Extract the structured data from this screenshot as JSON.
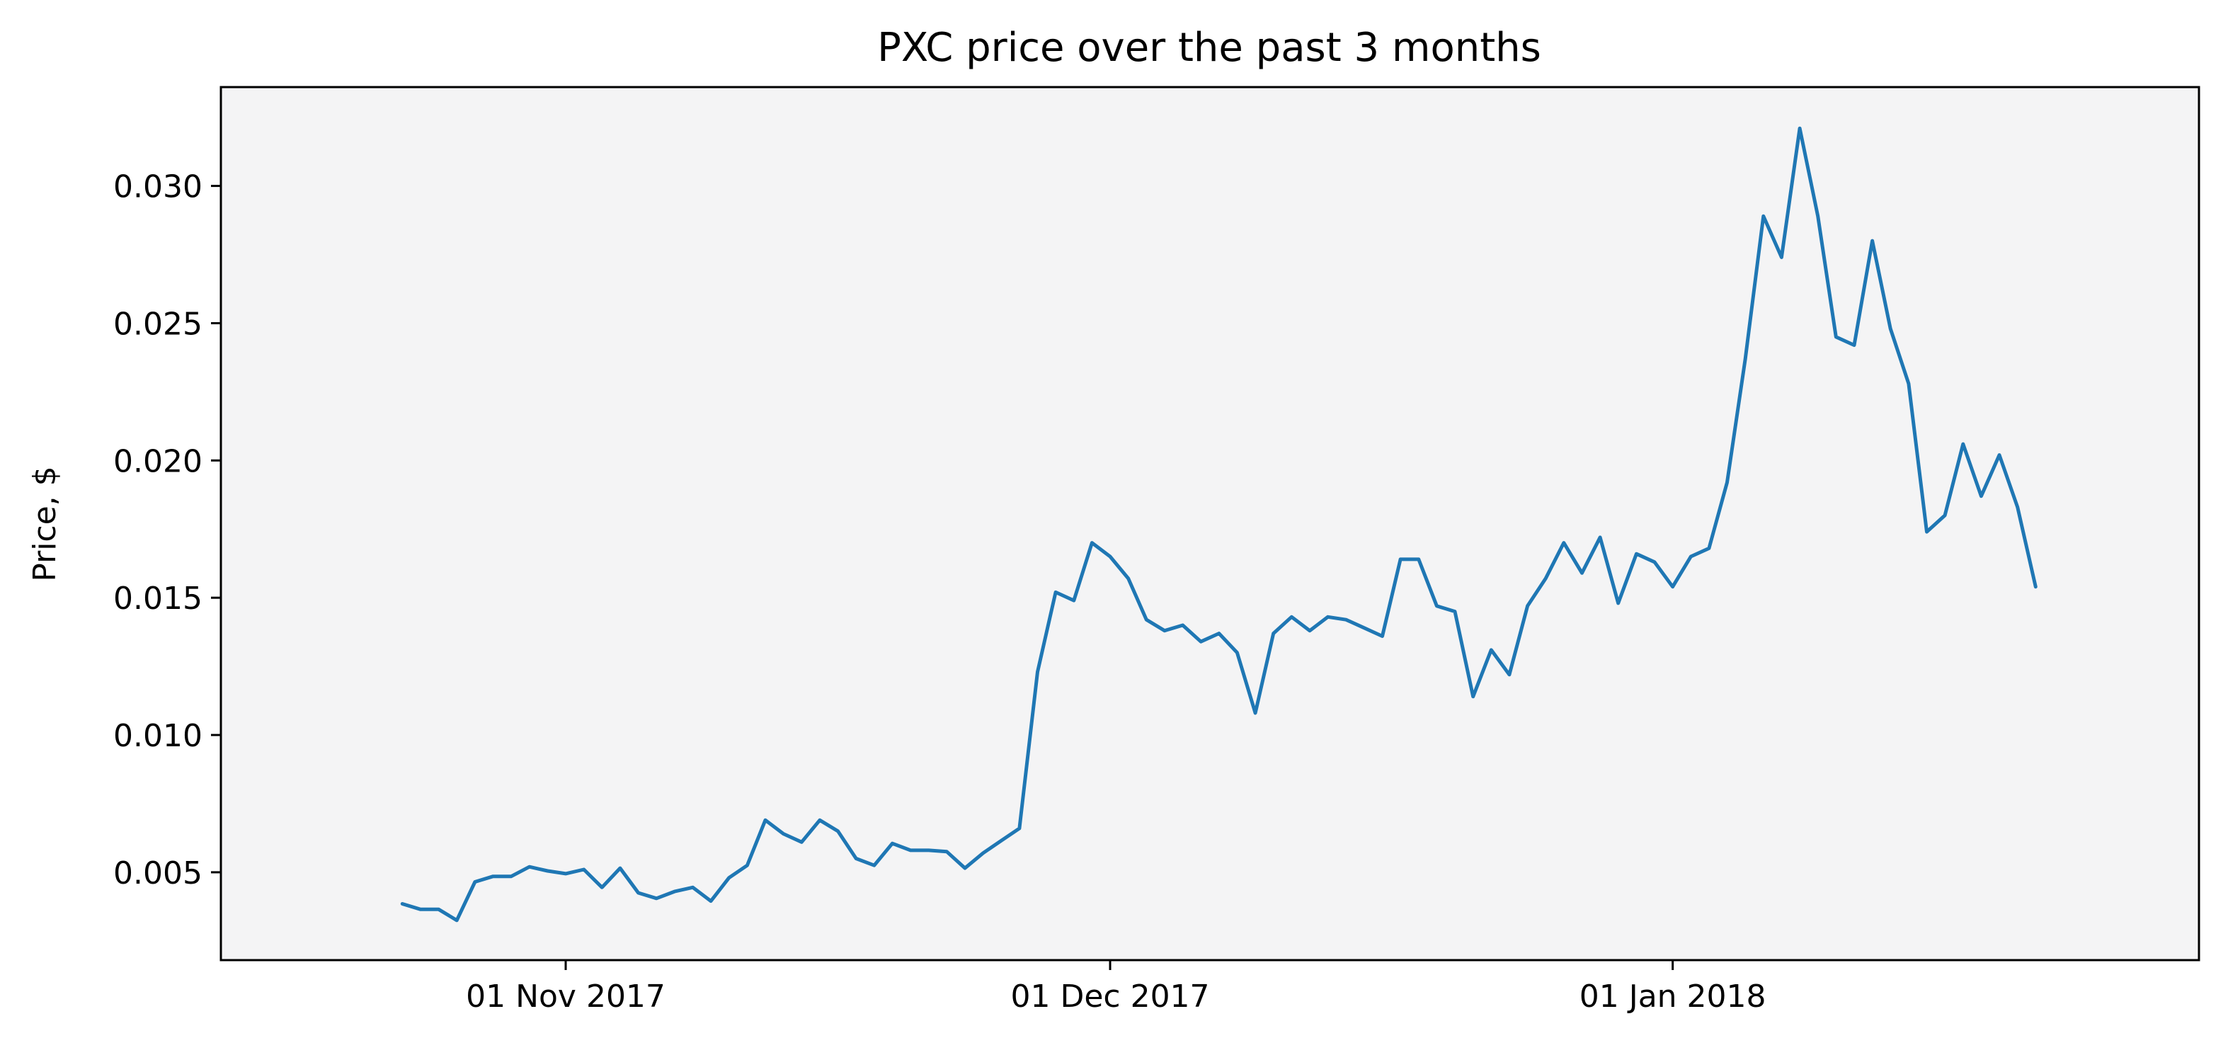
{
  "chart_data": {
    "type": "line",
    "title": "PXC price over the past 3 months",
    "xlabel": "",
    "ylabel": "Price, $",
    "grid": false,
    "background": "#f4f4f5",
    "line_color": "#1f77b4",
    "x_ticks": [
      "01 Nov 2017",
      "01 Dec 2017",
      "01 Jan 2018"
    ],
    "x_tick_dates": [
      "2017-11-01",
      "2017-12-01",
      "2018-01-01"
    ],
    "xlim": [
      "2017-10-13",
      "2018-01-30"
    ],
    "y_ticks": [
      "0.005",
      "0.010",
      "0.015",
      "0.020",
      "0.025",
      "0.030"
    ],
    "ylim": [
      0.0018,
      0.0336
    ],
    "series": [
      {
        "name": "",
        "x": [
          "2017-10-23",
          "2017-10-24",
          "2017-10-25",
          "2017-10-26",
          "2017-10-27",
          "2017-10-28",
          "2017-10-29",
          "2017-10-30",
          "2017-10-31",
          "2017-11-01",
          "2017-11-02",
          "2017-11-03",
          "2017-11-04",
          "2017-11-05",
          "2017-11-06",
          "2017-11-07",
          "2017-11-08",
          "2017-11-09",
          "2017-11-10",
          "2017-11-11",
          "2017-11-12",
          "2017-11-13",
          "2017-11-14",
          "2017-11-15",
          "2017-11-16",
          "2017-11-17",
          "2017-11-18",
          "2017-11-19",
          "2017-11-20",
          "2017-11-21",
          "2017-11-22",
          "2017-11-23",
          "2017-11-24",
          "2017-11-25",
          "2017-11-26",
          "2017-11-27",
          "2017-11-28",
          "2017-11-29",
          "2017-11-30",
          "2017-12-01",
          "2017-12-02",
          "2017-12-03",
          "2017-12-04",
          "2017-12-05",
          "2017-12-06",
          "2017-12-07",
          "2017-12-08",
          "2017-12-09",
          "2017-12-10",
          "2017-12-11",
          "2017-12-12",
          "2017-12-13",
          "2017-12-14",
          "2017-12-15",
          "2017-12-16",
          "2017-12-17",
          "2017-12-18",
          "2017-12-19",
          "2017-12-20",
          "2017-12-21",
          "2017-12-22",
          "2017-12-23",
          "2017-12-24",
          "2017-12-25",
          "2017-12-26",
          "2017-12-27",
          "2017-12-28",
          "2017-12-29",
          "2017-12-30",
          "2017-12-31",
          "2018-01-01",
          "2018-01-02",
          "2018-01-03",
          "2018-01-04",
          "2018-01-05",
          "2018-01-06",
          "2018-01-07",
          "2018-01-08",
          "2018-01-09",
          "2018-01-10",
          "2018-01-11",
          "2018-01-12",
          "2018-01-13",
          "2018-01-14",
          "2018-01-15",
          "2018-01-16",
          "2018-01-17",
          "2018-01-18",
          "2018-01-19",
          "2018-01-20",
          "2018-01-21"
        ],
        "values": [
          0.00385,
          0.00365,
          0.00365,
          0.00325,
          0.00465,
          0.00485,
          0.00485,
          0.0052,
          0.00505,
          0.00495,
          0.0051,
          0.00445,
          0.00515,
          0.00425,
          0.00405,
          0.0043,
          0.00445,
          0.00395,
          0.0048,
          0.00525,
          0.0069,
          0.0064,
          0.0061,
          0.0069,
          0.0065,
          0.0055,
          0.00525,
          0.00605,
          0.0058,
          0.0058,
          0.00575,
          0.00515,
          0.0057,
          0.00615,
          0.0066,
          0.0123,
          0.0152,
          0.0149,
          0.017,
          0.0165,
          0.0157,
          0.0142,
          0.0138,
          0.014,
          0.0134,
          0.0137,
          0.013,
          0.0108,
          0.0137,
          0.0143,
          0.0138,
          0.0143,
          0.0142,
          0.0139,
          0.0136,
          0.0164,
          0.0164,
          0.0147,
          0.0145,
          0.0114,
          0.0131,
          0.0122,
          0.0147,
          0.0157,
          0.017,
          0.0159,
          0.0172,
          0.0148,
          0.0166,
          0.0163,
          0.0154,
          0.0165,
          0.0168,
          0.0192,
          0.0237,
          0.0289,
          0.0274,
          0.0321,
          0.0289,
          0.0245,
          0.0242,
          0.028,
          0.0248,
          0.0228,
          0.0174,
          0.018,
          0.0206,
          0.0187,
          0.0202,
          0.0183,
          0.0154
        ]
      }
    ]
  }
}
